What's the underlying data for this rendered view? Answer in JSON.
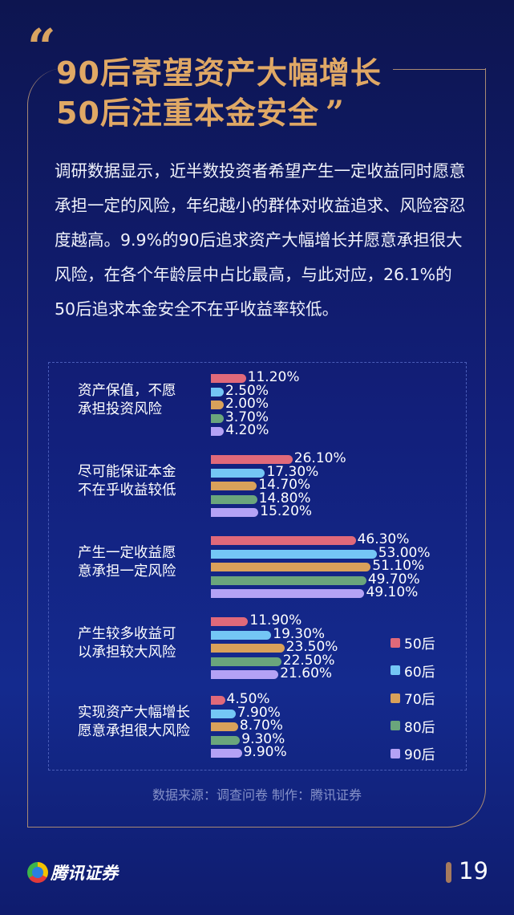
{
  "header": {
    "quote_open": "“",
    "title_line1": "90后寄望资产大幅增长",
    "title_line2": "50后注重本金安全",
    "quote_close": "”"
  },
  "paragraph": "调研数据显示，近半数投资者希望产生一定收益同时愿意承担一定的风险，年纪越小的群体对收益追求、风险容忍度越高。9.9%的90后追求资产大幅增长并愿意承担很大风险，在各个年龄层中占比最高，与此对应，26.1%的50后追求本金安全不在乎收益率较低。",
  "chart_data": {
    "type": "bar",
    "orientation": "horizontal",
    "title": "",
    "categories": [
      "资产保值，不愿承担投资风险",
      "尽可能保证本金不在乎收益较低",
      "产生一定收益愿意承担一定风险",
      "产生较多收益可以承担较大风险",
      "实现资产大幅增长愿意承担很大风险"
    ],
    "category_lines": [
      [
        "资产保值，不愿",
        "承担投资风险"
      ],
      [
        "尽可能保证本金",
        "不在乎收益较低"
      ],
      [
        "产生一定收益愿",
        "意承担一定风险"
      ],
      [
        "产生较多收益可",
        "以承担较大风险"
      ],
      [
        "实现资产大幅增长",
        "愿意承担很大风险"
      ]
    ],
    "series": [
      {
        "name": "50后",
        "color": "#e0697a",
        "values": [
          11.2,
          26.1,
          46.3,
          11.9,
          4.5
        ],
        "labels": [
          "11.20%",
          "26.10%",
          "46.30%",
          "11.90%",
          "4.50%"
        ]
      },
      {
        "name": "60后",
        "color": "#74c6f5",
        "values": [
          2.5,
          17.3,
          53.0,
          19.3,
          7.9
        ],
        "labels": [
          "2.50%",
          "17.30%",
          "53.00%",
          "19.30%",
          "7.90%"
        ]
      },
      {
        "name": "70后",
        "color": "#d9a15a",
        "values": [
          2.0,
          14.7,
          51.1,
          23.5,
          8.7
        ],
        "labels": [
          "2.00%",
          "14.70%",
          "51.10%",
          "23.50%",
          "8.70%"
        ]
      },
      {
        "name": "80后",
        "color": "#6aa57c",
        "values": [
          3.7,
          14.8,
          49.7,
          22.5,
          9.3
        ],
        "labels": [
          "3.70%",
          "14.80%",
          "49.70%",
          "22.50%",
          "9.30%"
        ]
      },
      {
        "name": "90后",
        "color": "#b4a2f5",
        "values": [
          4.2,
          15.2,
          49.1,
          21.6,
          9.9
        ],
        "labels": [
          "4.20%",
          "15.20%",
          "49.10%",
          "21.60%",
          "9.90%"
        ]
      }
    ],
    "unit": "%",
    "legend_position": "right-bottom",
    "grid": false
  },
  "footer": {
    "source": "数据来源：调查问卷  制作：腾讯证券",
    "brand": "腾讯证券",
    "page_number": "19"
  }
}
